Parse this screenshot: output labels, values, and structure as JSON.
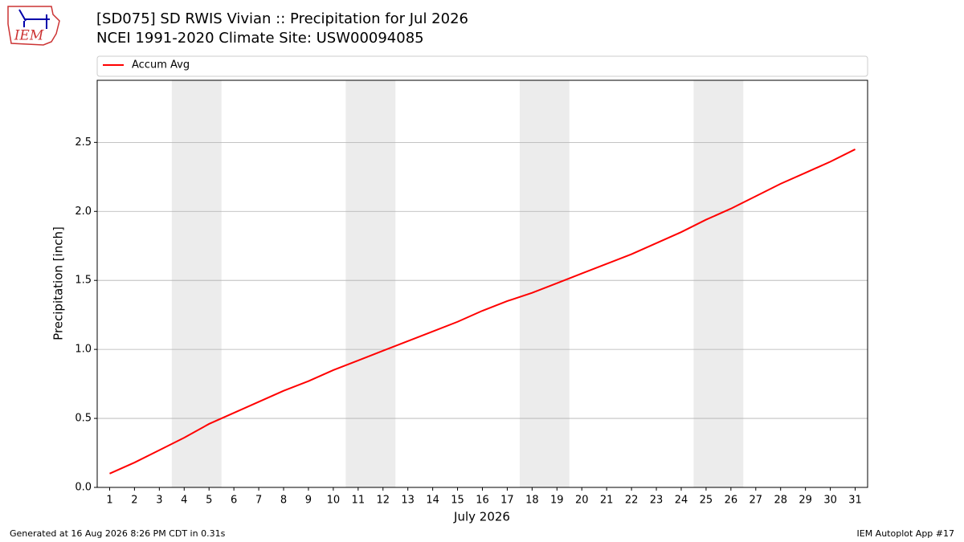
{
  "chart_data": {
    "type": "line",
    "title": "[SD075] SD RWIS Vivian :: Precipitation for Jul 2026",
    "subtitle": "NCEI 1991-2020 Climate Site: USW00094085",
    "x_label": "July 2026",
    "y_label": "Precipitation [inch]",
    "x": [
      1,
      2,
      3,
      4,
      5,
      6,
      7,
      8,
      9,
      10,
      11,
      12,
      13,
      14,
      15,
      16,
      17,
      18,
      19,
      20,
      21,
      22,
      23,
      24,
      25,
      26,
      27,
      28,
      29,
      30,
      31
    ],
    "series": [
      {
        "name": "Accum Avg",
        "color": "#ff0000",
        "values": [
          0.1,
          0.18,
          0.27,
          0.36,
          0.46,
          0.54,
          0.62,
          0.7,
          0.77,
          0.85,
          0.92,
          0.99,
          1.06,
          1.13,
          1.2,
          1.28,
          1.35,
          1.41,
          1.48,
          1.55,
          1.62,
          1.69,
          1.77,
          1.85,
          1.94,
          2.02,
          2.11,
          2.2,
          2.28,
          2.36,
          2.45
        ]
      }
    ],
    "xlim": [
      0.5,
      31.5
    ],
    "xticks": [
      1,
      2,
      3,
      4,
      5,
      6,
      7,
      8,
      9,
      10,
      11,
      12,
      13,
      14,
      15,
      16,
      17,
      18,
      19,
      20,
      21,
      22,
      23,
      24,
      25,
      26,
      27,
      28,
      29,
      30,
      31
    ],
    "ylim": [
      0,
      2.95
    ],
    "yticks": [
      {
        "value": 0,
        "label": "0.0"
      },
      0.5,
      {
        "value": 1,
        "label": "1.0"
      },
      1.5,
      {
        "value": 2,
        "label": "2.0"
      },
      2.5
    ],
    "shaded_spans": [
      [
        3.5,
        5.5
      ],
      [
        10.5,
        12.5
      ],
      [
        17.5,
        19.5
      ],
      [
        24.5,
        26.5
      ]
    ],
    "shade_color": "#ececec",
    "grid": true,
    "legend": "top"
  },
  "logo": {
    "text": "IEM"
  },
  "footer": {
    "left": "Generated at 16 Aug 2026 8:26 PM CDT in 0.31s",
    "right": "IEM Autoplot App #17"
  }
}
